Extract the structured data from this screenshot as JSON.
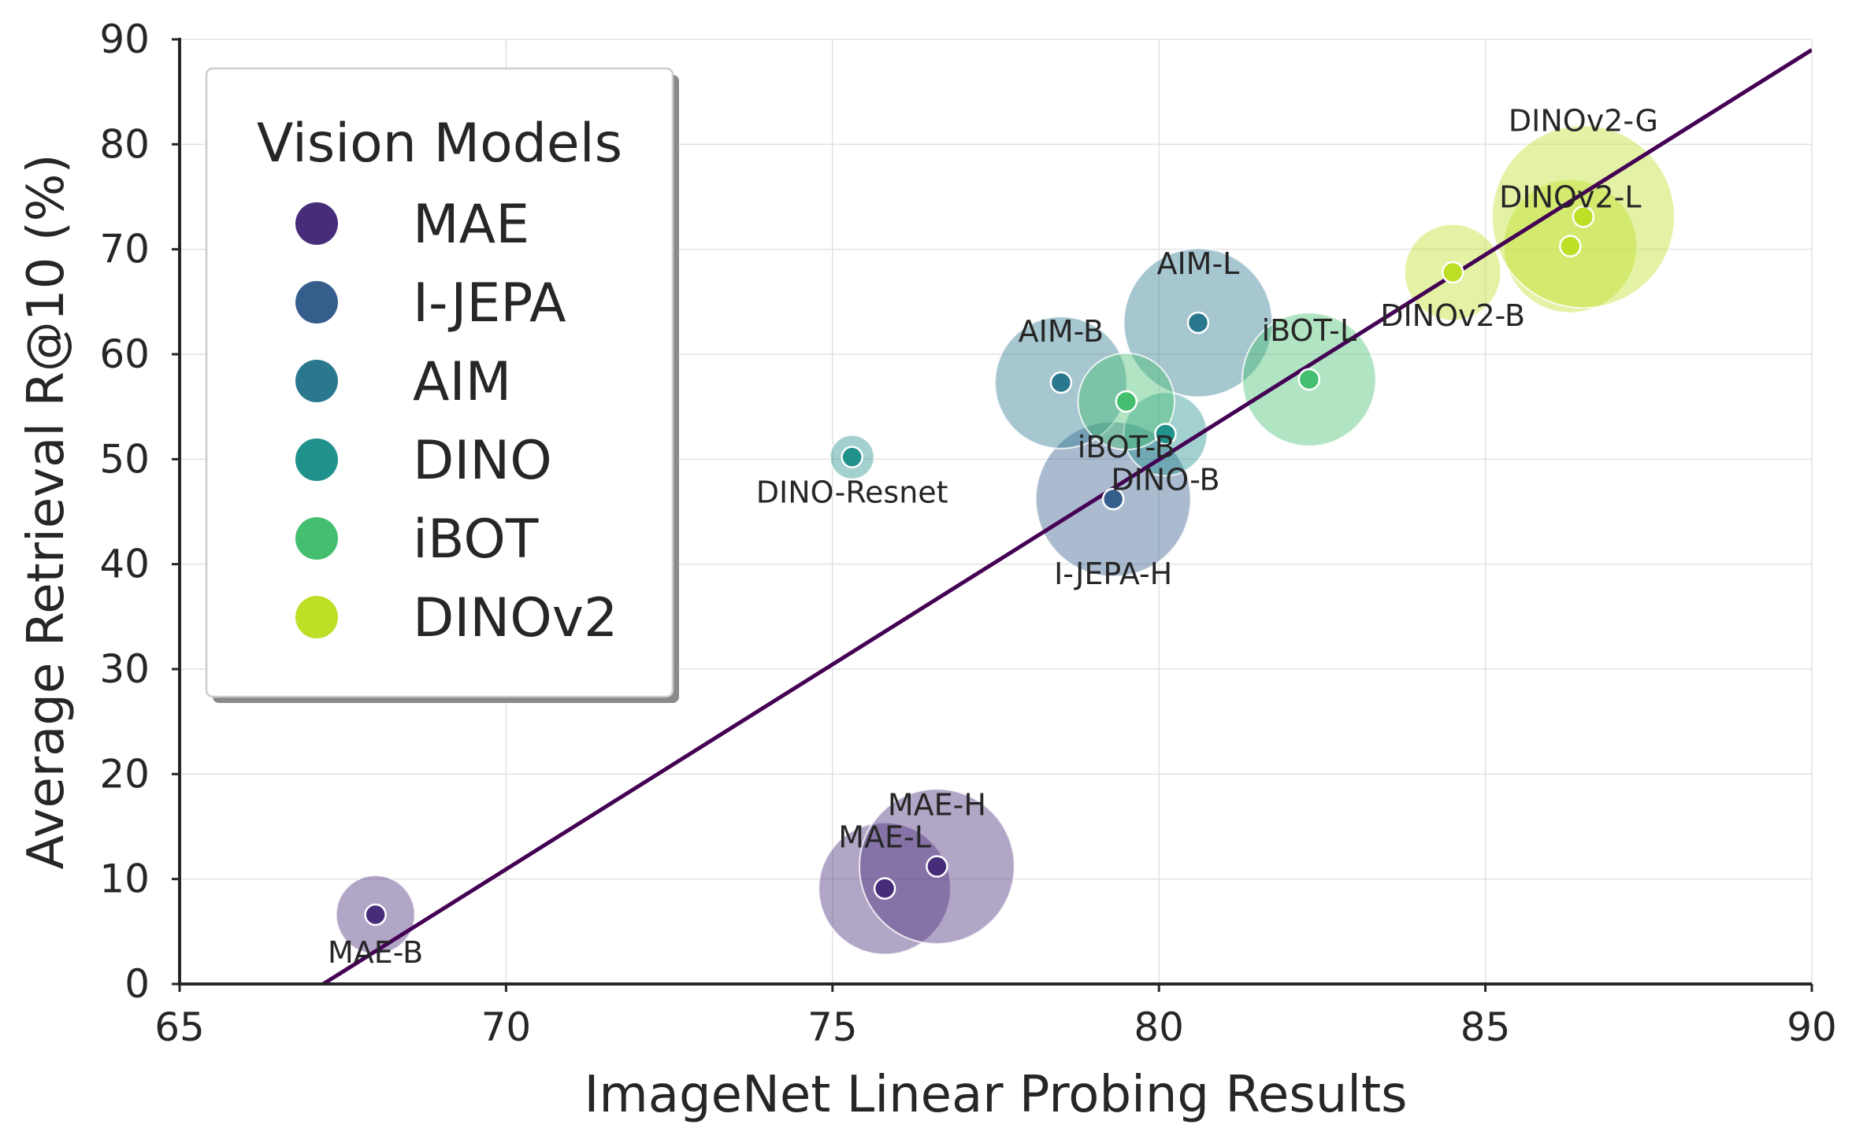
{
  "chart_data": {
    "type": "scatter",
    "xlabel": "ImageNet Linear Probing Results",
    "ylabel": "Average Retrieval R@10 (%)",
    "xlim": [
      65,
      90
    ],
    "ylim": [
      0,
      90
    ],
    "x_ticks": [
      "65",
      "70",
      "75",
      "80",
      "85",
      "90"
    ],
    "y_ticks": [
      "0",
      "10",
      "20",
      "30",
      "40",
      "50",
      "60",
      "70",
      "80",
      "90"
    ],
    "grid": true,
    "legend": {
      "title": "Vision Models",
      "placement": "top-left",
      "entries": [
        {
          "label": "MAE",
          "color": "#472c7a"
        },
        {
          "label": "I-JEPA",
          "color": "#355e8d"
        },
        {
          "label": "AIM",
          "color": "#2a788e"
        },
        {
          "label": "DINO",
          "color": "#21918c"
        },
        {
          "label": "iBOT",
          "color": "#44bf70"
        },
        {
          "label": "DINOv2",
          "color": "#bddf26"
        }
      ]
    },
    "fit_line": {
      "color": "#440154",
      "x": [
        67.2,
        90
      ],
      "y": [
        0,
        89
      ]
    },
    "points": [
      {
        "label": "MAE-B",
        "group": "MAE",
        "x": 68.0,
        "y": 6.6,
        "size": 0.16
      },
      {
        "label": "MAE-L",
        "group": "MAE",
        "x": 75.8,
        "y": 9.1,
        "size": 0.45
      },
      {
        "label": "MAE-H",
        "group": "MAE",
        "x": 76.6,
        "y": 11.2,
        "size": 0.62
      },
      {
        "label": "I-JEPA-H",
        "group": "I-JEPA",
        "x": 79.3,
        "y": 46.2,
        "size": 0.62
      },
      {
        "label": "AIM-B",
        "group": "AIM",
        "x": 78.5,
        "y": 57.3,
        "size": 0.45
      },
      {
        "label": "AIM-L",
        "group": "AIM",
        "x": 80.6,
        "y": 63.0,
        "size": 0.57
      },
      {
        "label": "DINO-Resnet",
        "group": "DINO",
        "x": 75.3,
        "y": 50.2,
        "size": 0.05
      },
      {
        "label": "DINO-B",
        "group": "DINO",
        "x": 80.1,
        "y": 52.4,
        "size": 0.18
      },
      {
        "label": "iBOT-B",
        "group": "iBOT",
        "x": 79.5,
        "y": 55.5,
        "size": 0.24
      },
      {
        "label": "iBOT-L",
        "group": "iBOT",
        "x": 82.3,
        "y": 57.6,
        "size": 0.46
      },
      {
        "label": "DINOv2-B",
        "group": "DINOv2",
        "x": 84.5,
        "y": 67.8,
        "size": 0.24
      },
      {
        "label": "DINOv2-L",
        "group": "DINOv2",
        "x": 86.3,
        "y": 70.3,
        "size": 0.46
      },
      {
        "label": "DINOv2-G",
        "group": "DINOv2",
        "x": 86.5,
        "y": 73.1,
        "size": 0.86
      }
    ]
  }
}
